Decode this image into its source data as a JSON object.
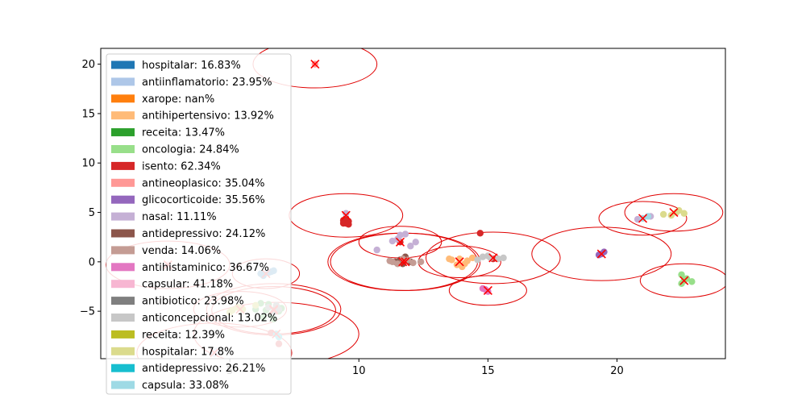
{
  "chart_data": {
    "type": "scatter",
    "xlim": [
      0,
      24.2
    ],
    "ylim": [
      -9.8,
      21.6
    ],
    "x_ticks": [
      5,
      10,
      15,
      20
    ],
    "x_tick_labels": [
      "5",
      "10",
      "15",
      "20"
    ],
    "y_ticks": [
      -5,
      0,
      5,
      10,
      15,
      20
    ],
    "y_tick_labels": [
      "−5",
      "0",
      "5",
      "10",
      "15",
      "20"
    ],
    "legend_position": "upper-left",
    "grid": false,
    "series": [
      {
        "name": "hospitalar: 16.83%",
        "color": "#1f77b4",
        "points": [
          [
            6.3,
            -1.4
          ],
          [
            6.5,
            -1.1
          ],
          [
            6.6,
            -1.0
          ],
          [
            6.7,
            -0.9
          ],
          [
            6.2,
            -1.2
          ]
        ],
        "centroid": [
          6.4,
          -1.2
        ],
        "radius": [
          1.3,
          1.5
        ]
      },
      {
        "name": "antiinflamatorio: 23.95%",
        "color": "#aec7e8",
        "points": [
          [
            4.5,
            -9.0
          ],
          [
            4.4,
            -9.3
          ]
        ],
        "centroid": [
          4.4,
          -9.2
        ],
        "radius": [
          3.0,
          3.0
        ]
      },
      {
        "name": "xarope: nan%",
        "color": "#ff7f0e",
        "points": [],
        "centroid": null,
        "radius": null
      },
      {
        "name": "antihipertensivo: 13.92%",
        "color": "#ffbb78",
        "points": [
          [
            13.6,
            0.2
          ],
          [
            13.9,
            0.3
          ],
          [
            14.2,
            0.1
          ],
          [
            14.4,
            0.4
          ],
          [
            13.8,
            -0.3
          ],
          [
            14.0,
            -0.5
          ],
          [
            13.5,
            0.3
          ],
          [
            14.1,
            -0.2
          ]
        ],
        "centroid": [
          13.9,
          0.0
        ],
        "radius": [
          1.6,
          1.6
        ]
      },
      {
        "name": "receita: 13.47%",
        "color": "#2ca02c",
        "points": [
          [
            6.2,
            -4.2
          ],
          [
            6.5,
            -4.3
          ],
          [
            6.8,
            -4.6
          ],
          [
            6.9,
            -5.0
          ],
          [
            6.6,
            -5.4
          ],
          [
            6.3,
            -5.6
          ],
          [
            6.0,
            -4.8
          ],
          [
            6.7,
            -5.8
          ],
          [
            6.4,
            -4.9
          ],
          [
            7.0,
            -4.7
          ]
        ],
        "centroid": [
          6.7,
          -4.9
        ],
        "radius": [
          2.4,
          2.4
        ]
      },
      {
        "name": "oncologia: 24.84%",
        "color": "#98df8a",
        "points": [
          [
            22.5,
            -1.3
          ],
          [
            22.7,
            -1.7
          ],
          [
            22.9,
            -2.0
          ],
          [
            22.5,
            -2.2
          ],
          [
            22.6,
            -1.9
          ]
        ],
        "centroid": [
          22.6,
          -1.9
        ],
        "radius": [
          1.7,
          1.7
        ]
      },
      {
        "name": "isento: 62.34%",
        "color": "#d62728",
        "points": [
          [
            9.4,
            4.2
          ],
          [
            9.5,
            3.9
          ],
          [
            9.6,
            3.8
          ],
          [
            9.5,
            4.4
          ],
          [
            9.4,
            3.9
          ],
          [
            9.6,
            4.1
          ],
          [
            14.7,
            2.9
          ],
          [
            15.2,
            0.3
          ],
          [
            11.6,
            2.0
          ],
          [
            6.6,
            -7.2
          ],
          [
            6.9,
            -8.3
          ]
        ],
        "centroid": [
          9.5,
          4.7
        ],
        "radius": [
          2.2,
          2.2
        ]
      },
      {
        "name": "antineoplasico: 35.04%",
        "color": "#ff9896",
        "points": [
          [
            8.3,
            20.0
          ]
        ],
        "centroid": [
          8.3,
          20.0
        ],
        "radius": [
          2.4,
          2.4
        ]
      },
      {
        "name": "glicocorticoide: 35.56%",
        "color": "#9467bd",
        "points": [
          [
            19.3,
            0.7
          ],
          [
            19.5,
            1.0
          ],
          [
            19.4,
            0.8
          ]
        ],
        "centroid": [
          19.4,
          0.8
        ],
        "radius": [
          2.7,
          2.7
        ]
      },
      {
        "name": "nasal: 11.11%",
        "color": "#c5b0d5",
        "points": [
          [
            11.5,
            2.3
          ],
          [
            11.8,
            2.8
          ],
          [
            12.0,
            1.6
          ],
          [
            10.7,
            1.2
          ],
          [
            12.2,
            2.0
          ],
          [
            11.3,
            2.1
          ],
          [
            20.8,
            4.3
          ],
          [
            21.3,
            4.6
          ],
          [
            11.6,
            2.7
          ],
          [
            9.5,
            4.9
          ]
        ],
        "centroid": [
          11.6,
          2.0
        ],
        "radius": [
          1.6,
          1.6
        ]
      },
      {
        "name": "antidepressivo: 24.12%",
        "color": "#8c564b",
        "points": [
          [
            11.4,
            0.0
          ],
          [
            11.7,
            -0.2
          ],
          [
            11.8,
            0.5
          ],
          [
            12.0,
            0.0
          ],
          [
            11.6,
            0.2
          ]
        ],
        "centroid": [
          11.7,
          0.0
        ],
        "radius": [
          2.9,
          2.9
        ]
      },
      {
        "name": "venda: 14.06%",
        "color": "#c49c94",
        "points": [
          [
            11.3,
            0.0
          ],
          [
            11.5,
            -0.2
          ],
          [
            11.9,
            0.2
          ],
          [
            12.4,
            0.0
          ],
          [
            11.7,
            0.3
          ],
          [
            11.2,
            0.1
          ],
          [
            12.1,
            -0.1
          ]
        ],
        "centroid": [
          11.8,
          0.0
        ],
        "radius": [
          2.9,
          2.9
        ]
      },
      {
        "name": "antihistaminico: 36.67%",
        "color": "#e377c2",
        "points": [
          [
            14.8,
            -2.7
          ],
          [
            15.0,
            -3.0
          ],
          [
            14.9,
            -2.8
          ]
        ],
        "centroid": [
          15.0,
          -2.9
        ],
        "radius": [
          1.5,
          1.5
        ]
      },
      {
        "name": "capsular: 41.18%",
        "color": "#f7b6d2",
        "points": [
          [
            2.6,
            -0.3
          ]
        ],
        "centroid": [
          2.6,
          -0.3
        ],
        "radius": [
          2.4,
          2.4
        ]
      },
      {
        "name": "antibiotico: 23.98%",
        "color": "#7f7f7f",
        "points": [
          [
            6.5,
            -4.6
          ],
          [
            6.8,
            -4.4
          ],
          [
            6.9,
            -4.8
          ],
          [
            6.7,
            -5.1
          ]
        ],
        "centroid": [
          6.7,
          -4.8
        ],
        "radius": [
          2.6,
          2.6
        ]
      },
      {
        "name": "anticoncepcional: 13.02%",
        "color": "#c7c7c7",
        "points": [
          [
            14.8,
            0.5
          ],
          [
            15.1,
            0.4
          ],
          [
            15.4,
            0.3
          ],
          [
            15.6,
            0.4
          ],
          [
            14.6,
            0.2
          ],
          [
            15.0,
            0.6
          ]
        ],
        "centroid": [
          15.2,
          0.4
        ],
        "radius": [
          2.6,
          2.6
        ]
      },
      {
        "name": "receita: 12.39%",
        "color": "#bcbd22",
        "points": [
          [
            5.1,
            -4.9
          ],
          [
            5.3,
            -4.6
          ],
          [
            5.5,
            -4.8
          ],
          [
            5.0,
            -5.1
          ],
          [
            6.0,
            -4.4
          ]
        ],
        "centroid": [
          5.4,
          -4.8
        ],
        "radius": [
          1.8,
          1.8
        ]
      },
      {
        "name": "hospitalar: 17.8%",
        "color": "#dbdb8d",
        "points": [
          [
            21.8,
            4.8
          ],
          [
            22.3,
            5.0
          ],
          [
            22.6,
            4.9
          ],
          [
            22.1,
            4.7
          ],
          [
            22.4,
            5.2
          ]
        ],
        "centroid": [
          22.2,
          5.0
        ],
        "radius": [
          1.9,
          1.9
        ]
      },
      {
        "name": "antidepressivo: 26.21%",
        "color": "#17becf",
        "points": [
          [
            6.8,
            -7.3
          ],
          [
            6.9,
            -7.6
          ]
        ],
        "centroid": [
          6.8,
          -7.3
        ],
        "radius": [
          3.2,
          3.2
        ]
      },
      {
        "name": "capsula: 33.08%",
        "color": "#9edae5",
        "points": [
          [
            21.0,
            4.4
          ],
          [
            21.2,
            4.6
          ]
        ],
        "centroid": [
          21.0,
          4.4
        ],
        "radius": [
          1.7,
          1.7
        ]
      }
    ]
  }
}
